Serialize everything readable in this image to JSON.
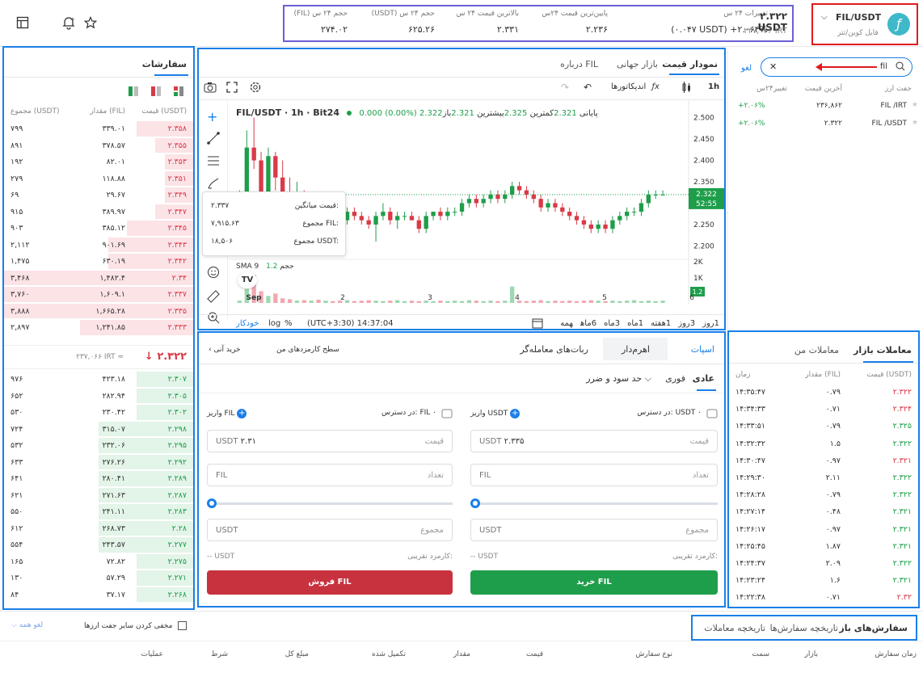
{
  "header": {
    "pair": "FIL/USDT",
    "pair_sub": "فایل کوین/تتر",
    "logo_glyph": "ƒ",
    "price_usdt": "۲.۳۲۲ USDT",
    "price_irt": "۲۳۷,۰۶۶ IRT",
    "stats": [
      {
        "label": "تغییرات ۲۴ س",
        "value": "(۰.۰۴۷ USDT) +۲.۰۶۴%",
        "color": "#1e9e4a"
      },
      {
        "label": "پایین‌ترین قیمت ۲۴س",
        "value": "۲.۲۳۶"
      },
      {
        "label": "بالاترین قیمت ۲۴ س",
        "value": "۲.۳۳۱"
      },
      {
        "label": "حجم ۲۴ س (USDT)",
        "value": "۶۲۵.۲۶"
      },
      {
        "label": "حجم ۲۴ س (FIL)",
        "value": "۲۷۴.۰۲"
      }
    ]
  },
  "markets": {
    "search_value": "fil",
    "filter_label": "لغو",
    "columns": [
      "جفت ارز",
      "آخرین قیمت",
      "تغییر۲۴س"
    ],
    "rows": [
      {
        "pair": "FIL /IRT",
        "price": "۲۳۶,۸۶۲",
        "change": "+۲.۰۶%"
      },
      {
        "pair": "FIL /USDT",
        "price": "۲.۳۲۲",
        "change": "+۲.۰۶%"
      }
    ]
  },
  "chart": {
    "tabs": [
      "نمودار قیمت",
      "بازار جهانی",
      "درباره FIL"
    ],
    "timeframe": "1h",
    "indicators_label": "اندیکاتورها",
    "symbol_title": "FIL/USDT · 1h · Bit24",
    "ohlc": {
      "open_label": "باز",
      "open": "2.321",
      "high_label": "بیشترین",
      "high": "2.325",
      "low_label": "کمترین",
      "low": "2.321",
      "close_label": "پایانی",
      "close": "2.322",
      "change": "0.000 (0.00%)"
    },
    "tooltip": {
      "rows": [
        {
          "label": "قیمت میانگین:",
          "value": "۲.۳۳۷"
        },
        {
          "label": "مجموع FIL:",
          "value": "۷,۹۱۵.۶۳"
        },
        {
          "label": "مجموع USDT:",
          "value": "۱۸,۵۰۶"
        }
      ]
    },
    "sma_label": "SMA 9 حجم",
    "sma_value": "1.2",
    "last_price_tag": "2.322",
    "countdown_tag": "52:55",
    "volume_tag": "1.2",
    "volume_axis": [
      "2K",
      "1K"
    ],
    "x_labels": [
      "Sep",
      "2",
      "3",
      "4",
      "5",
      "6"
    ],
    "bottom_ranges": [
      "1روز",
      "3روز",
      "1هفته",
      "1ماه",
      "3ماه",
      "6ماه",
      "همه"
    ],
    "timezone": "(UTC+3:30) 14:37:04",
    "scale_opts": [
      "%",
      "log",
      "خودکار"
    ]
  },
  "chart_data": {
    "type": "candlestick",
    "title": "FIL/USDT · 1h · Bit24",
    "ylim": [
      2.18,
      2.52
    ],
    "y_ticks": [
      2.5,
      2.45,
      2.4,
      2.35,
      2.3,
      2.25,
      2.2
    ],
    "x_ticks": [
      "Sep",
      "2",
      "3",
      "4",
      "5",
      "6"
    ],
    "candles": [
      [
        2.29,
        2.33,
        2.28,
        2.31
      ],
      [
        2.31,
        2.47,
        2.3,
        2.43
      ],
      [
        2.43,
        2.5,
        2.38,
        2.4
      ],
      [
        2.4,
        2.42,
        2.3,
        2.32
      ],
      [
        2.32,
        2.43,
        2.31,
        2.41
      ],
      [
        2.41,
        2.42,
        2.33,
        2.36
      ],
      [
        2.36,
        2.4,
        2.31,
        2.32
      ],
      [
        2.32,
        2.36,
        2.27,
        2.28
      ],
      [
        2.28,
        2.35,
        2.26,
        2.32
      ],
      [
        2.32,
        2.33,
        2.26,
        2.27
      ],
      [
        2.27,
        2.31,
        2.26,
        2.3
      ],
      [
        2.3,
        2.31,
        2.24,
        2.25
      ],
      [
        2.25,
        2.29,
        2.23,
        2.28
      ],
      [
        2.28,
        2.3,
        2.26,
        2.27
      ],
      [
        2.27,
        2.28,
        2.25,
        2.26
      ],
      [
        2.26,
        2.29,
        2.25,
        2.28
      ],
      [
        2.28,
        2.29,
        2.26,
        2.27
      ],
      [
        2.27,
        2.28,
        2.25,
        2.26
      ],
      [
        2.26,
        2.27,
        2.24,
        2.25
      ],
      [
        2.25,
        2.28,
        2.21,
        2.27
      ],
      [
        2.27,
        2.3,
        2.26,
        2.28
      ],
      [
        2.28,
        2.29,
        2.25,
        2.26
      ],
      [
        2.26,
        2.28,
        2.24,
        2.27
      ],
      [
        2.27,
        2.28,
        2.26,
        2.27
      ],
      [
        2.27,
        2.28,
        2.26,
        2.26
      ],
      [
        2.26,
        2.27,
        2.23,
        2.24
      ],
      [
        2.24,
        2.28,
        2.23,
        2.27
      ],
      [
        2.27,
        2.28,
        2.26,
        2.28
      ],
      [
        2.28,
        2.29,
        2.26,
        2.27
      ],
      [
        2.27,
        2.29,
        2.26,
        2.28
      ],
      [
        2.28,
        2.29,
        2.27,
        2.28
      ],
      [
        2.28,
        2.31,
        2.27,
        2.3
      ],
      [
        2.3,
        2.32,
        2.29,
        2.31
      ],
      [
        2.31,
        2.32,
        2.29,
        2.3
      ],
      [
        2.3,
        2.32,
        2.29,
        2.31
      ],
      [
        2.31,
        2.33,
        2.3,
        2.32
      ],
      [
        2.32,
        2.33,
        2.3,
        2.31
      ],
      [
        2.31,
        2.33,
        2.3,
        2.32
      ],
      [
        2.32,
        2.35,
        2.31,
        2.34
      ],
      [
        2.34,
        2.35,
        2.32,
        2.33
      ],
      [
        2.33,
        2.34,
        2.31,
        2.32
      ],
      [
        2.32,
        2.33,
        2.3,
        2.31
      ],
      [
        2.31,
        2.32,
        2.28,
        2.29
      ],
      [
        2.29,
        2.31,
        2.28,
        2.3
      ],
      [
        2.3,
        2.31,
        2.28,
        2.29
      ],
      [
        2.29,
        2.3,
        2.27,
        2.28
      ],
      [
        2.28,
        2.29,
        2.26,
        2.27
      ],
      [
        2.27,
        2.28,
        2.25,
        2.26
      ],
      [
        2.26,
        2.27,
        2.24,
        2.25
      ],
      [
        2.25,
        2.26,
        2.23,
        2.24
      ],
      [
        2.24,
        2.26,
        2.23,
        2.25
      ],
      [
        2.25,
        2.26,
        2.23,
        2.24
      ],
      [
        2.24,
        2.27,
        2.23,
        2.26
      ],
      [
        2.26,
        2.28,
        2.25,
        2.27
      ],
      [
        2.27,
        2.29,
        2.26,
        2.28
      ],
      [
        2.28,
        2.29,
        2.27,
        2.28
      ],
      [
        2.28,
        2.31,
        2.27,
        2.3
      ],
      [
        2.3,
        2.33,
        2.29,
        2.32
      ],
      [
        2.32,
        2.33,
        2.31,
        2.32
      ],
      [
        2.32,
        2.33,
        2.32,
        2.32
      ]
    ],
    "volume": [
      0.05,
      0.3,
      0.6,
      0.25,
      0.15,
      0.2,
      0.1,
      0.08,
      0.05,
      0.06,
      0.05,
      0.07,
      0.05,
      0.04,
      0.05,
      0.06,
      0.04,
      0.05,
      0.06,
      0.05,
      0.04,
      0.05,
      0.06,
      0.04,
      0.05,
      0.04,
      0.05,
      0.04,
      0.05,
      0.04,
      0.05,
      0.04,
      0.06,
      0.05,
      0.04,
      0.05,
      0.04,
      0.05,
      0.35,
      0.05,
      0.04,
      0.05,
      0.06,
      0.04,
      0.05,
      0.04,
      0.05,
      0.04,
      0.05,
      0.06,
      0.05,
      0.04,
      0.05,
      0.04,
      0.05,
      0.06,
      0.04,
      0.05,
      0.04,
      0.05
    ]
  },
  "orderbook": {
    "title": "سفارشات",
    "columns": [
      "قیمت (USDT)",
      "مقدار (FIL)",
      "مجموع (USDT)"
    ],
    "asks": [
      {
        "price": "۲.۳۵۸",
        "amount": "۳۳۹.۰۱",
        "total": "۷۹۹",
        "fill": 0.3
      },
      {
        "price": "۲.۳۵۵",
        "amount": "۳۷۸.۵۷",
        "total": "۸۹۱",
        "fill": 0.2
      },
      {
        "price": "۲.۳۵۳",
        "amount": "۸۲.۰۱",
        "total": "۱۹۲",
        "fill": 0.15
      },
      {
        "price": "۲.۳۵۱",
        "amount": "۱۱۸.۸۸",
        "total": "۲۷۹",
        "fill": 0.15
      },
      {
        "price": "۲.۳۴۹",
        "amount": "۲۹.۶۷",
        "total": "۶۹",
        "fill": 0.15
      },
      {
        "price": "۲.۳۴۷",
        "amount": "۳۸۹.۹۷",
        "total": "۹۱۵",
        "fill": 0.2
      },
      {
        "price": "۲.۳۴۵",
        "amount": "۳۸۵.۱۲",
        "total": "۹۰۳",
        "fill": 0.35
      },
      {
        "price": "۲.۳۴۳",
        "amount": "۹۰۱.۶۹",
        "total": "۲,۱۱۲",
        "fill": 0.45
      },
      {
        "price": "۲.۳۴۲",
        "amount": "۶۳۰.۱۹",
        "total": "۱,۴۷۵",
        "fill": 0.45
      },
      {
        "price": "۲.۳۴",
        "amount": "۱,۴۸۲.۴",
        "total": "۳,۴۶۸",
        "fill": 1.0
      },
      {
        "price": "۲.۳۳۷",
        "amount": "۱,۶۰۹.۱",
        "total": "۳,۷۶۰",
        "fill": 1.0
      },
      {
        "price": "۲.۳۳۵",
        "amount": "۱,۶۶۵.۲۸",
        "total": "۳,۸۸۸",
        "fill": 1.0
      },
      {
        "price": "۲.۳۳۳",
        "amount": "۱,۲۴۱.۸۵",
        "total": "۲,۸۹۷",
        "fill": 0.6
      }
    ],
    "mid_price": "۲.۳۲۲",
    "mid_irt": "۲۳۷,۰۶۶ IRT ≈",
    "bids": [
      {
        "price": "۲.۳۰۷",
        "amount": "۴۲۳.۱۸",
        "total": "۹۷۶",
        "fill": 0.3
      },
      {
        "price": "۲.۳۰۵",
        "amount": "۲۸۲.۹۴",
        "total": "۶۵۲",
        "fill": 0.3
      },
      {
        "price": "۲.۳۰۲",
        "amount": "۲۳۰.۴۲",
        "total": "۵۳۰",
        "fill": 0.3
      },
      {
        "price": "۲.۲۹۸",
        "amount": "۳۱۵.۰۷",
        "total": "۷۲۴",
        "fill": 0.5
      },
      {
        "price": "۲.۲۹۵",
        "amount": "۲۳۲.۰۶",
        "total": "۵۳۲",
        "fill": 0.5
      },
      {
        "price": "۲.۲۹۲",
        "amount": "۲۷۶.۲۶",
        "total": "۶۳۳",
        "fill": 0.5
      },
      {
        "price": "۲.۲۸۹",
        "amount": "۲۸۰.۴۱",
        "total": "۶۴۱",
        "fill": 0.5
      },
      {
        "price": "۲.۲۸۷",
        "amount": "۲۷۱.۶۳",
        "total": "۶۲۱",
        "fill": 0.5
      },
      {
        "price": "۲.۲۸۳",
        "amount": "۲۴۱.۱۱",
        "total": "۵۵۰",
        "fill": 0.5
      },
      {
        "price": "۲.۲۸",
        "amount": "۲۶۸.۷۳",
        "total": "۶۱۲",
        "fill": 0.5
      },
      {
        "price": "۲.۲۷۷",
        "amount": "۲۴۳.۵۷",
        "total": "۵۵۴",
        "fill": 0.5
      },
      {
        "price": "۲.۲۷۵",
        "amount": "۷۲.۸۲",
        "total": "۱۶۵",
        "fill": 0.3
      },
      {
        "price": "۲.۲۷۱",
        "amount": "۵۷.۲۹",
        "total": "۱۳۰",
        "fill": 0.3
      },
      {
        "price": "۲.۲۶۸",
        "amount": "۳۷.۱۷",
        "total": "۸۴",
        "fill": 0.3
      }
    ]
  },
  "trades": {
    "tabs": [
      "معاملات بازار",
      "معاملات من"
    ],
    "columns": [
      "قیمت (USDT)",
      "مقدار (FIL)",
      "زمان"
    ],
    "rows": [
      {
        "price": "۲.۳۲۲",
        "amount": "۰.۷۹",
        "time": "۱۴:۳۵:۴۷",
        "side": "sell"
      },
      {
        "price": "۲.۳۲۴",
        "amount": "۰.۷۱",
        "time": "۱۴:۳۴:۳۳",
        "side": "sell"
      },
      {
        "price": "۲.۳۲۵",
        "amount": "۰.۷۹",
        "time": "۱۴:۳۳:۵۱",
        "side": "buy"
      },
      {
        "price": "۲.۳۲۲",
        "amount": "۱.۵",
        "time": "۱۴:۳۲:۳۲",
        "side": "buy"
      },
      {
        "price": "۲.۳۲۱",
        "amount": "۰.۹۷",
        "time": "۱۴:۳۰:۴۷",
        "side": "sell"
      },
      {
        "price": "۲.۳۲۲",
        "amount": "۲.۱۱",
        "time": "۱۴:۲۹:۳۰",
        "side": "buy"
      },
      {
        "price": "۲.۳۲۲",
        "amount": "۰.۷۹",
        "time": "۱۴:۲۸:۲۸",
        "side": "buy"
      },
      {
        "price": "۲.۳۲۱",
        "amount": "۰.۴۸",
        "time": "۱۴:۲۷:۱۴",
        "side": "buy"
      },
      {
        "price": "۲.۳۲۱",
        "amount": "۰.۹۷",
        "time": "۱۴:۲۶:۱۷",
        "side": "buy"
      },
      {
        "price": "۲.۳۲۱",
        "amount": "۱.۸۷",
        "time": "۱۴:۲۵:۴۵",
        "side": "buy"
      },
      {
        "price": "۲.۳۲۲",
        "amount": "۲.۰۹",
        "time": "۱۴:۲۴:۳۷",
        "side": "buy"
      },
      {
        "price": "۲.۳۲۱",
        "amount": "۱.۶",
        "time": "۱۴:۲۳:۲۴",
        "side": "buy"
      },
      {
        "price": "۲.۳۲",
        "amount": "۰.۷۱",
        "time": "۱۴:۲۲:۳۸",
        "side": "sell"
      }
    ]
  },
  "trade_form": {
    "tabs": [
      "اسپات",
      "اهرم‌دار",
      "ربات‌های معامله‌گر"
    ],
    "fee_level": "سطح کارمزدهای من",
    "instant_buy": "خرید آنی",
    "order_types": [
      "عادی",
      "فوری",
      "حد سود و ضرر"
    ],
    "buy": {
      "available_label": "در دسترس:",
      "available": "USDT ۰",
      "deposit": "واریز USDT",
      "price_label": "قیمت",
      "price_value": "۲.۳۳۵",
      "price_unit": "USDT",
      "amount_label": "تعداد",
      "amount_unit": "FIL",
      "total_label": "مجموع",
      "total_unit": "USDT",
      "fee_label": "کارمزد تقریبی:",
      "fee_value": "-- USDT",
      "button": "خرید FIL"
    },
    "sell": {
      "available_label": "در دسترس:",
      "available": "FIL ۰",
      "deposit": "واریز FIL",
      "price_label": "قیمت",
      "price_value": "۲.۳۱",
      "price_unit": "USDT",
      "amount_label": "تعداد",
      "amount_unit": "FIL",
      "total_label": "مجموع",
      "total_unit": "USDT",
      "fee_label": "کارمزد تقریبی:",
      "fee_value": "-- USDT",
      "button": "فروش FIL"
    }
  },
  "orders": {
    "tabs": [
      "سفارش‌های باز",
      "تاریخچه سفارش‌ها",
      "تاریخچه معاملات"
    ],
    "hide_label": "مخفی کردن سایر جفت ارزها",
    "cancel_all": "لغو همه",
    "columns": [
      "زمان سفارش",
      "بازار",
      "سمت",
      "نوع سفارش",
      "قیمت",
      "مقدار",
      "تکمیل شده",
      "مبلغ کل",
      "شرط",
      "عملیات"
    ]
  },
  "colors": {
    "accent": "#1a7fe8",
    "buy": "#1e9e4a",
    "sell": "#d93a48",
    "ask_bg": "#fbe3e6",
    "bid_bg": "#e3f4e8"
  }
}
